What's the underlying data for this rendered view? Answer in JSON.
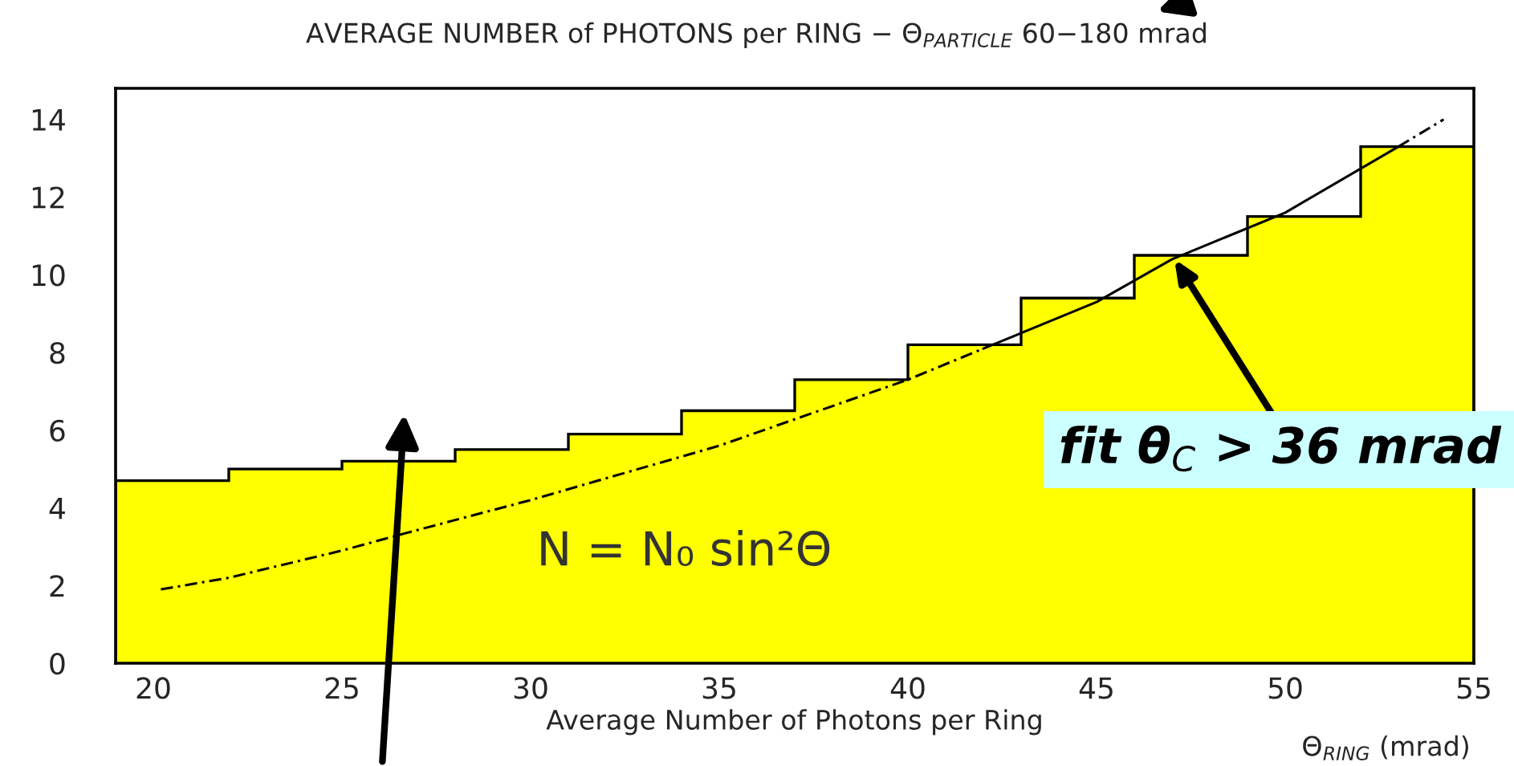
{
  "chart_data": {
    "type": "histogram",
    "title": "AVERAGE NUMBER of PHOTONS per RING − Θ$_{PARTICLE}$ 60−180 mrad",
    "xlabel": "Average Number of Photons per Ring",
    "bins": [
      19,
      22,
      25,
      28,
      31,
      34,
      37,
      40,
      43,
      46,
      49,
      52,
      55
    ],
    "values": [
      4.7,
      5.0,
      5.2,
      5.5,
      5.9,
      6.5,
      7.3,
      8.2,
      9.4,
      10.5,
      11.5,
      13.3
    ],
    "color": "#ffff00",
    "series": [
      {
        "type": "line",
        "line_style": "dashed",
        "color": "#000000",
        "x": [
          20.2,
          22,
          25,
          26.5,
          30,
          35,
          40,
          42
        ],
        "values": [
          1.9,
          2.2,
          2.9,
          3.3,
          4.2,
          5.6,
          7.3,
          8.1
        ]
      },
      {
        "type": "line",
        "line_style": "solid",
        "color": "#000000",
        "x": [
          42,
          45,
          47,
          50,
          53
        ],
        "values": [
          8.1,
          9.3,
          10.4,
          11.6,
          13.3
        ]
      },
      {
        "type": "line",
        "line_style": "dashed",
        "color": "#000000",
        "x": [
          53,
          54.2
        ],
        "values": [
          13.3,
          14.0
        ]
      }
    ],
    "xlim": [
      19,
      55
    ],
    "ylim": [
      0,
      14.8
    ],
    "xticks": [
      20,
      25,
      30,
      35,
      40,
      45,
      50,
      55
    ],
    "yticks": [
      0,
      2,
      4,
      6,
      8,
      10,
      12,
      14
    ],
    "annotations": [
      "N = N₀ sin²Θ",
      "Θ$_{RING}$ (mrad)",
      {
        "text": "fit θ$_{C}$ > 36 mrad",
        "x": 47,
        "y": 10.5
      }
    ],
    "grid": false,
    "legend": false
  }
}
